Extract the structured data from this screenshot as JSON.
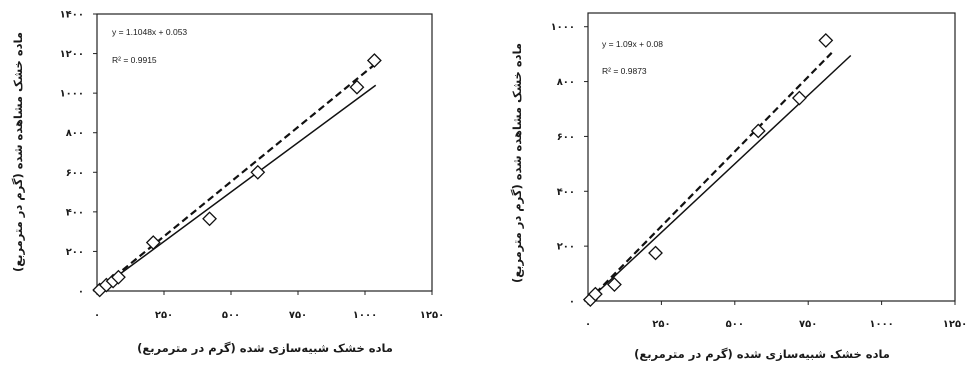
{
  "chart_data": [
    {
      "type": "scatter",
      "title": "",
      "xlabel": "ماده خشک شبیه‌سازی شده (گرم در مترمربع)",
      "ylabel": "ماده خشک مشاهده شده (گرم در مترمربع)",
      "xlim": [
        0,
        1250
      ],
      "ylim": [
        0,
        1400
      ],
      "grid": false,
      "x_ticks": [
        0,
        250,
        500,
        750,
        1000,
        1250
      ],
      "x_tick_labels": [
        "۰",
        "۲۵۰",
        "۵۰۰",
        "۷۵۰",
        "۱۰۰۰",
        "۱۲۵۰"
      ],
      "y_ticks": [
        0,
        200,
        400,
        600,
        800,
        1000,
        1200,
        1400
      ],
      "y_tick_labels": [
        "۰",
        "۲۰۰",
        "۴۰۰",
        "۶۰۰",
        "۸۰۰",
        "۱۰۰۰",
        "۱۲۰۰",
        "۱۴۰۰"
      ],
      "series": [
        {
          "marker": "diamond",
          "points": [
            [
              10,
              5
            ],
            [
              35,
              30
            ],
            [
              60,
              50
            ],
            [
              80,
              70
            ],
            [
              210,
              245
            ],
            [
              420,
              365
            ],
            [
              600,
              600
            ],
            [
              970,
              1030
            ],
            [
              1035,
              1165
            ]
          ]
        }
      ],
      "lines": [
        {
          "style": "dashed",
          "slope": 1.1048,
          "intercept": 0.053,
          "x_range": [
            0,
            1030
          ]
        },
        {
          "style": "solid",
          "slope": 1,
          "intercept": 0,
          "x_range": [
            0,
            1040
          ]
        }
      ],
      "annotations": [
        "y = 1.1048x + 0.053",
        "R² = 0.9915"
      ]
    },
    {
      "type": "scatter",
      "title": "",
      "xlabel": "ماده خشک شبیه‌سازی شده (گرم در مترمربع)",
      "ylabel": "ماده خشک مشاهده شده (گرم در مترمربع)",
      "xlim": [
        0,
        1250
      ],
      "ylim": [
        0,
        1050
      ],
      "grid": false,
      "x_ticks": [
        0,
        250,
        500,
        750,
        1000,
        1250
      ],
      "x_tick_labels": [
        "۰",
        "۲۵۰",
        "۵۰۰",
        "۷۵۰",
        "۱۰۰۰",
        "۱۲۵۰"
      ],
      "y_ticks": [
        0,
        200,
        400,
        600,
        800,
        1000
      ],
      "y_tick_labels": [
        "۰",
        "۲۰۰",
        "۴۰۰",
        "۶۰۰",
        "۸۰۰",
        "۱۰۰۰"
      ],
      "series": [
        {
          "marker": "diamond",
          "points": [
            [
              8,
              5
            ],
            [
              25,
              25
            ],
            [
              90,
              60
            ],
            [
              230,
              175
            ],
            [
              580,
              620
            ],
            [
              720,
              740
            ],
            [
              810,
              950
            ]
          ]
        }
      ],
      "lines": [
        {
          "style": "dashed",
          "slope": 1.09,
          "intercept": 0.08,
          "x_range": [
            0,
            830
          ]
        },
        {
          "style": "solid",
          "slope": 1,
          "intercept": 0,
          "x_range": [
            0,
            895
          ]
        }
      ],
      "annotations": [
        "y = 1.09x + 0.08",
        "R² = 0.9873"
      ]
    }
  ]
}
